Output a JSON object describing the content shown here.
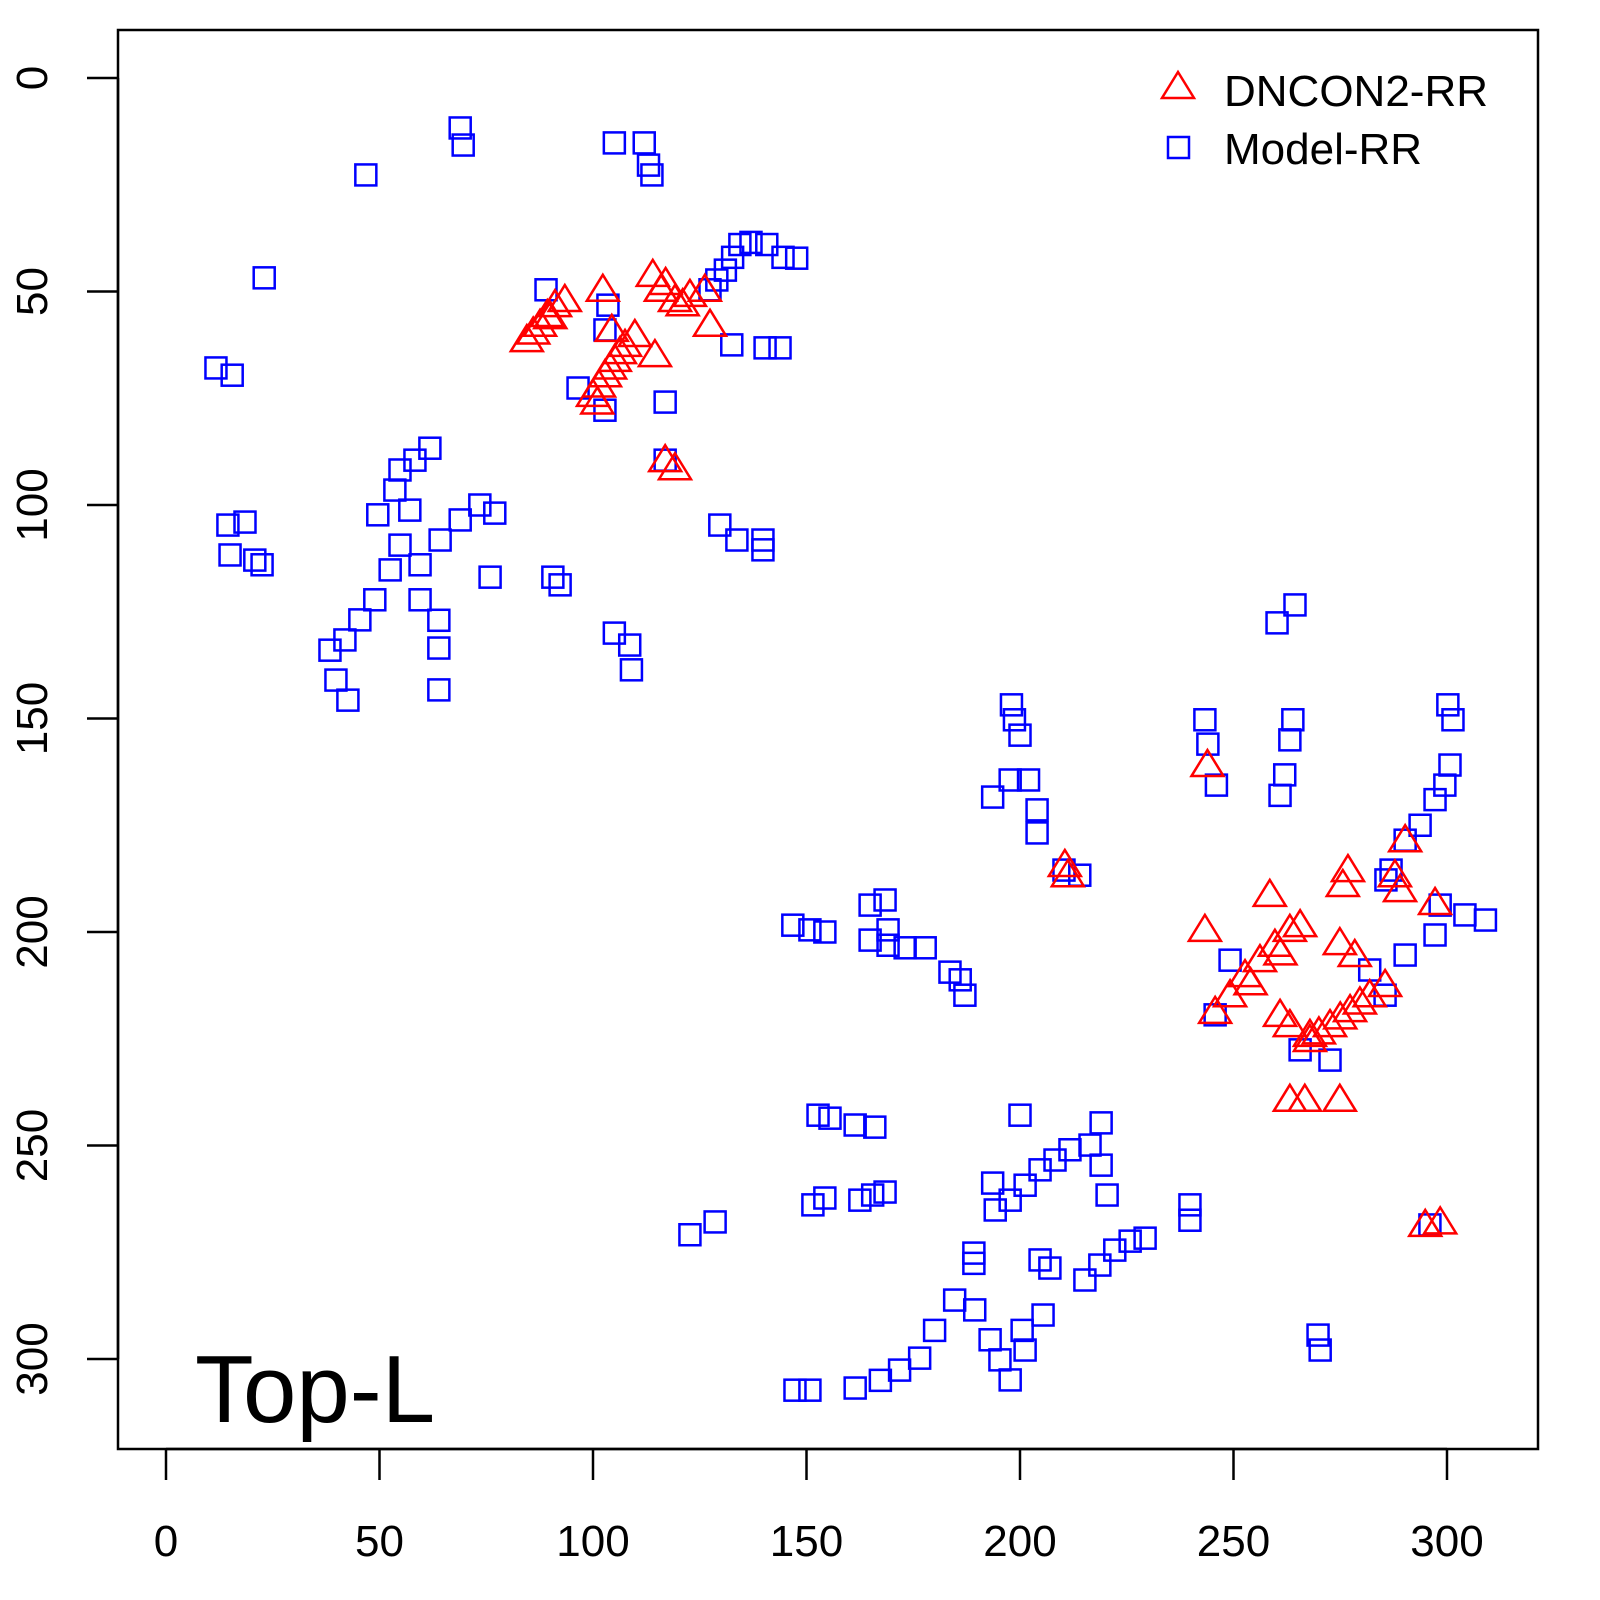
{
  "chart_data": {
    "type": "scatter",
    "title": "",
    "xlabel": "",
    "ylabel": "",
    "xlim": [
      -11.2,
      321.3
    ],
    "ylim": [
      -11.2,
      321
    ],
    "y_inverted": true,
    "grid": false,
    "x_ticks": [
      0,
      50,
      100,
      150,
      200,
      250,
      300
    ],
    "y_ticks": [
      0,
      50,
      100,
      150,
      200,
      250,
      300
    ],
    "annotation": "Top-L",
    "legend_position": "top-right",
    "series": [
      {
        "name": "DNCON2-RR",
        "marker": "triangle",
        "color": "#ff0000",
        "points": [
          [
            84.5,
            61.4
          ],
          [
            86,
            59.6
          ],
          [
            87.6,
            57.8
          ],
          [
            89.3,
            55.5
          ],
          [
            91.1,
            53.2
          ],
          [
            93.4,
            52
          ],
          [
            90,
            56
          ],
          [
            102.3,
            49.6
          ],
          [
            100,
            74.2
          ],
          [
            101.4,
            72
          ],
          [
            102.8,
            69.6
          ],
          [
            104,
            67.8
          ],
          [
            105.1,
            66
          ],
          [
            106.3,
            64.2
          ],
          [
            107.5,
            62.5
          ],
          [
            109.8,
            60.2
          ],
          [
            104.4,
            59
          ],
          [
            101,
            76
          ],
          [
            114,
            46.1
          ],
          [
            115.9,
            49.6
          ],
          [
            119.2,
            52
          ],
          [
            122.7,
            50.8
          ],
          [
            126.2,
            49.6
          ],
          [
            127.4,
            57.8
          ],
          [
            114.5,
            64.9
          ],
          [
            117,
            48
          ],
          [
            121,
            53
          ],
          [
            116.9,
            89.5
          ],
          [
            119.2,
            91.4
          ],
          [
            243.9,
            160.9
          ],
          [
            210.5,
            184.3
          ],
          [
            211.2,
            186.7
          ],
          [
            243.3,
            199.5
          ],
          [
            258.5,
            191.3
          ],
          [
            290.2,
            178.5
          ],
          [
            276.8,
            185.5
          ],
          [
            275.6,
            189
          ],
          [
            287.8,
            186.7
          ],
          [
            289,
            190.2
          ],
          [
            297.2,
            193.2
          ],
          [
            245.7,
            218.7
          ],
          [
            249.2,
            214.8
          ],
          [
            252.7,
            210.1
          ],
          [
            256.2,
            206.6
          ],
          [
            259.7,
            203
          ],
          [
            263.2,
            199.5
          ],
          [
            265.6,
            198.4
          ],
          [
            254,
            212
          ],
          [
            261,
            205
          ],
          [
            274.9,
            202.6
          ],
          [
            278.4,
            205.4
          ],
          [
            267.9,
            225.3
          ],
          [
            270,
            223.5
          ],
          [
            272.6,
            221.8
          ],
          [
            275,
            220
          ],
          [
            277.3,
            218.3
          ],
          [
            279.6,
            216.5
          ],
          [
            281.9,
            214.8
          ],
          [
            285.5,
            212.4
          ],
          [
            260.9,
            219.4
          ],
          [
            263.2,
            221.8
          ],
          [
            267.9,
            224.1
          ],
          [
            263.2,
            239.3
          ],
          [
            266.7,
            239.3
          ],
          [
            274.9,
            239.3
          ],
          [
            294.9,
            268.6
          ],
          [
            298.4,
            268
          ]
        ]
      },
      {
        "name": "Model-RR",
        "marker": "square",
        "color": "#0000ff",
        "points": [
          [
            68.9,
            11.7
          ],
          [
            69.6,
            15.7
          ],
          [
            46.8,
            22.7
          ],
          [
            23,
            46.8
          ],
          [
            11.7,
            67.9
          ],
          [
            15.5,
            69.6
          ],
          [
            105,
            15.2
          ],
          [
            112,
            15.2
          ],
          [
            113,
            20.4
          ],
          [
            113.8,
            22.7
          ],
          [
            127.4,
            49.6
          ],
          [
            129,
            47.3
          ],
          [
            131,
            45
          ],
          [
            132.7,
            42
          ],
          [
            134.4,
            39
          ],
          [
            137,
            38.5
          ],
          [
            140.7,
            39
          ],
          [
            144.5,
            42
          ],
          [
            147.7,
            42.2
          ],
          [
            132.5,
            62.5
          ],
          [
            140.3,
            63.2
          ],
          [
            143.8,
            63.2
          ],
          [
            89,
            49.6
          ],
          [
            103.5,
            53.2
          ],
          [
            102.8,
            59
          ],
          [
            96.5,
            72.6
          ],
          [
            102.8,
            77.8
          ],
          [
            116.9,
            75.9
          ],
          [
            116.9,
            89.5
          ],
          [
            129.7,
            104.7
          ],
          [
            133.7,
            108.2
          ],
          [
            139.8,
            108.2
          ],
          [
            139.8,
            110.5
          ],
          [
            14.5,
            104.7
          ],
          [
            18.5,
            104
          ],
          [
            15,
            111.7
          ],
          [
            20.8,
            112.9
          ],
          [
            22.5,
            114
          ],
          [
            38.4,
            134
          ],
          [
            41.9,
            131.6
          ],
          [
            45.4,
            126.9
          ],
          [
            48.9,
            122.2
          ],
          [
            52.5,
            115.2
          ],
          [
            54.8,
            109.4
          ],
          [
            57.1,
            101.2
          ],
          [
            53.6,
            96.5
          ],
          [
            54.8,
            91.8
          ],
          [
            58.3,
            89.5
          ],
          [
            61.8,
            86.7
          ],
          [
            49.6,
            102.3
          ],
          [
            39.8,
            141
          ],
          [
            42.6,
            145.7
          ],
          [
            59.5,
            114
          ],
          [
            64.2,
            108.2
          ],
          [
            68.9,
            103.5
          ],
          [
            73.5,
            100
          ],
          [
            77,
            101.9
          ],
          [
            59.5,
            122.2
          ],
          [
            63.9,
            127
          ],
          [
            63.9,
            133.5
          ],
          [
            63.9,
            143.3
          ],
          [
            75.9,
            116.9
          ],
          [
            90.6,
            116.9
          ],
          [
            92.3,
            118.7
          ],
          [
            105,
            130
          ],
          [
            108.6,
            132.8
          ],
          [
            109,
            138.6
          ],
          [
            260.2,
            127.6
          ],
          [
            264.4,
            123.4
          ],
          [
            198,
            146.8
          ],
          [
            198.7,
            150.3
          ],
          [
            200,
            153.9
          ],
          [
            193.6,
            168.4
          ],
          [
            197.7,
            164.4
          ],
          [
            202,
            164.4
          ],
          [
            204,
            171.4
          ],
          [
            204,
            176.8
          ],
          [
            210.3,
            185.5
          ],
          [
            214,
            186.7
          ],
          [
            243.3,
            150.3
          ],
          [
            244,
            156
          ],
          [
            246,
            165.6
          ],
          [
            263.9,
            150.3
          ],
          [
            263.2,
            155
          ],
          [
            262,
            163.2
          ],
          [
            260.9,
            168
          ],
          [
            300.2,
            146.8
          ],
          [
            301.4,
            150.3
          ],
          [
            290.2,
            178.5
          ],
          [
            293.7,
            175
          ],
          [
            297.2,
            169
          ],
          [
            299.5,
            165.6
          ],
          [
            300.7,
            160.9
          ],
          [
            298.4,
            193.7
          ],
          [
            304.2,
            196
          ],
          [
            309,
            197.2
          ],
          [
            297.2,
            200.7
          ],
          [
            290.2,
            205.4
          ],
          [
            286.9,
            185.5
          ],
          [
            285.7,
            187.8
          ],
          [
            249.2,
            206.6
          ],
          [
            245.7,
            219.4
          ],
          [
            265.6,
            227.6
          ],
          [
            272.6,
            230
          ],
          [
            285.5,
            214.8
          ],
          [
            281.9,
            208.9
          ],
          [
            146.8,
            198.4
          ],
          [
            150.8,
            199.5
          ],
          [
            154.3,
            200
          ],
          [
            164.9,
            193.7
          ],
          [
            168.4,
            192.5
          ],
          [
            169.1,
            199.5
          ],
          [
            164.9,
            201.9
          ],
          [
            169.1,
            203.1
          ],
          [
            173.1,
            203.7
          ],
          [
            177.8,
            203.7
          ],
          [
            183.6,
            209.4
          ],
          [
            186,
            211.2
          ],
          [
            187.1,
            214.8
          ],
          [
            200,
            242.9
          ],
          [
            219,
            244.7
          ],
          [
            194.2,
            265.1
          ],
          [
            197.7,
            262.8
          ],
          [
            201.2,
            259.3
          ],
          [
            204.7,
            255.7
          ],
          [
            208.2,
            253.4
          ],
          [
            211.7,
            251
          ],
          [
            216.4,
            249.9
          ],
          [
            219,
            254.6
          ],
          [
            220.4,
            261.6
          ],
          [
            215.2,
            281.5
          ],
          [
            218.7,
            278
          ],
          [
            222.2,
            274.5
          ],
          [
            225.8,
            272.4
          ],
          [
            229.3,
            271.7
          ],
          [
            193.6,
            258.8
          ],
          [
            204.7,
            276.8
          ],
          [
            207,
            278.7
          ],
          [
            205.4,
            289.7
          ],
          [
            239.8,
            263.9
          ],
          [
            239.8,
            267.5
          ],
          [
            189.2,
            275.2
          ],
          [
            189.2,
            277.6
          ],
          [
            161.4,
            306.8
          ],
          [
            167.3,
            305
          ],
          [
            171.8,
            302.6
          ],
          [
            176.5,
            299.8
          ],
          [
            180,
            293.3
          ],
          [
            184.7,
            286.2
          ],
          [
            189.4,
            288.5
          ],
          [
            193,
            295.5
          ],
          [
            195.3,
            300.2
          ],
          [
            197.7,
            304.9
          ],
          [
            201.2,
            297.9
          ],
          [
            200.5,
            293.3
          ],
          [
            147.3,
            307.3
          ],
          [
            150.8,
            307.3
          ],
          [
            152.7,
            242.9
          ],
          [
            155.5,
            243.6
          ],
          [
            161.4,
            245.2
          ],
          [
            166,
            245.7
          ],
          [
            151.5,
            263.9
          ],
          [
            154.3,
            262.3
          ],
          [
            162.5,
            262.8
          ],
          [
            165.5,
            261.6
          ],
          [
            168.4,
            260.9
          ],
          [
            122.7,
            270.9
          ],
          [
            128.6,
            267.9
          ],
          [
            269.8,
            294.4
          ],
          [
            270.3,
            297.9
          ],
          [
            296,
            268.6
          ]
        ]
      }
    ]
  }
}
